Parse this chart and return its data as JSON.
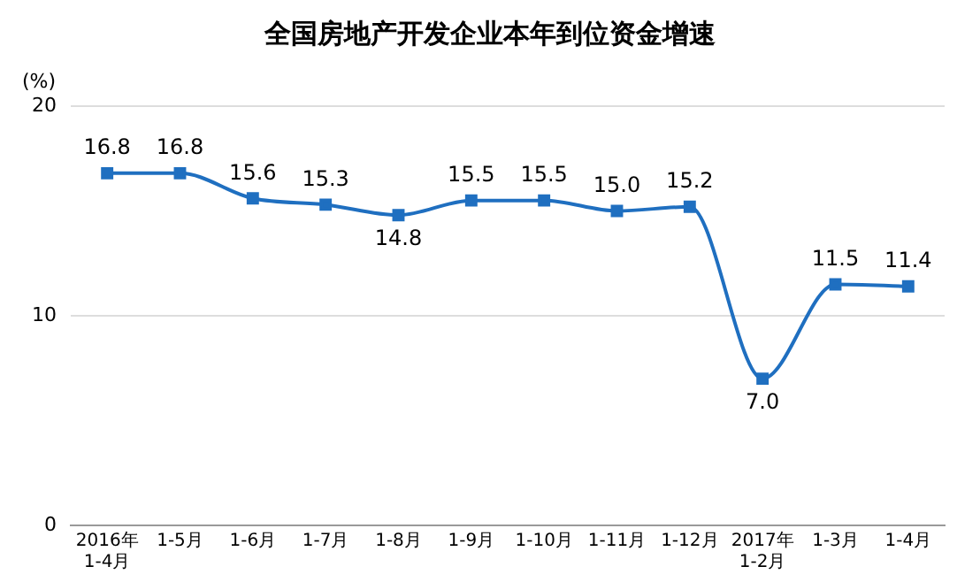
{
  "chart_data": {
    "type": "line",
    "title": "全国房地产开发企业本年到位资金增速",
    "ylabel": "(%)",
    "categories": [
      "2016年\n1-4月",
      "1-5月",
      "1-6月",
      "1-7月",
      "1-8月",
      "1-9月",
      "1-10月",
      "1-11月",
      "1-12月",
      "2017年\n1-2月",
      "1-3月",
      "1-4月"
    ],
    "series": [
      {
        "color": "#1f6fc0",
        "values": [
          16.8,
          16.8,
          15.6,
          15.3,
          14.8,
          15.5,
          15.5,
          15.0,
          15.2,
          7.0,
          11.5,
          11.4
        ],
        "value_labels": [
          "16.8",
          "16.8",
          "15.6",
          "15.3",
          "14.8",
          "15.5",
          "15.5",
          "15.0",
          "15.2",
          "7.0",
          "11.5",
          "11.4"
        ]
      }
    ],
    "ylim": [
      0,
      20
    ],
    "yticks": [
      0,
      10,
      20
    ],
    "grid": "y",
    "marker": "square",
    "line_style": "solid",
    "legend": false
  }
}
